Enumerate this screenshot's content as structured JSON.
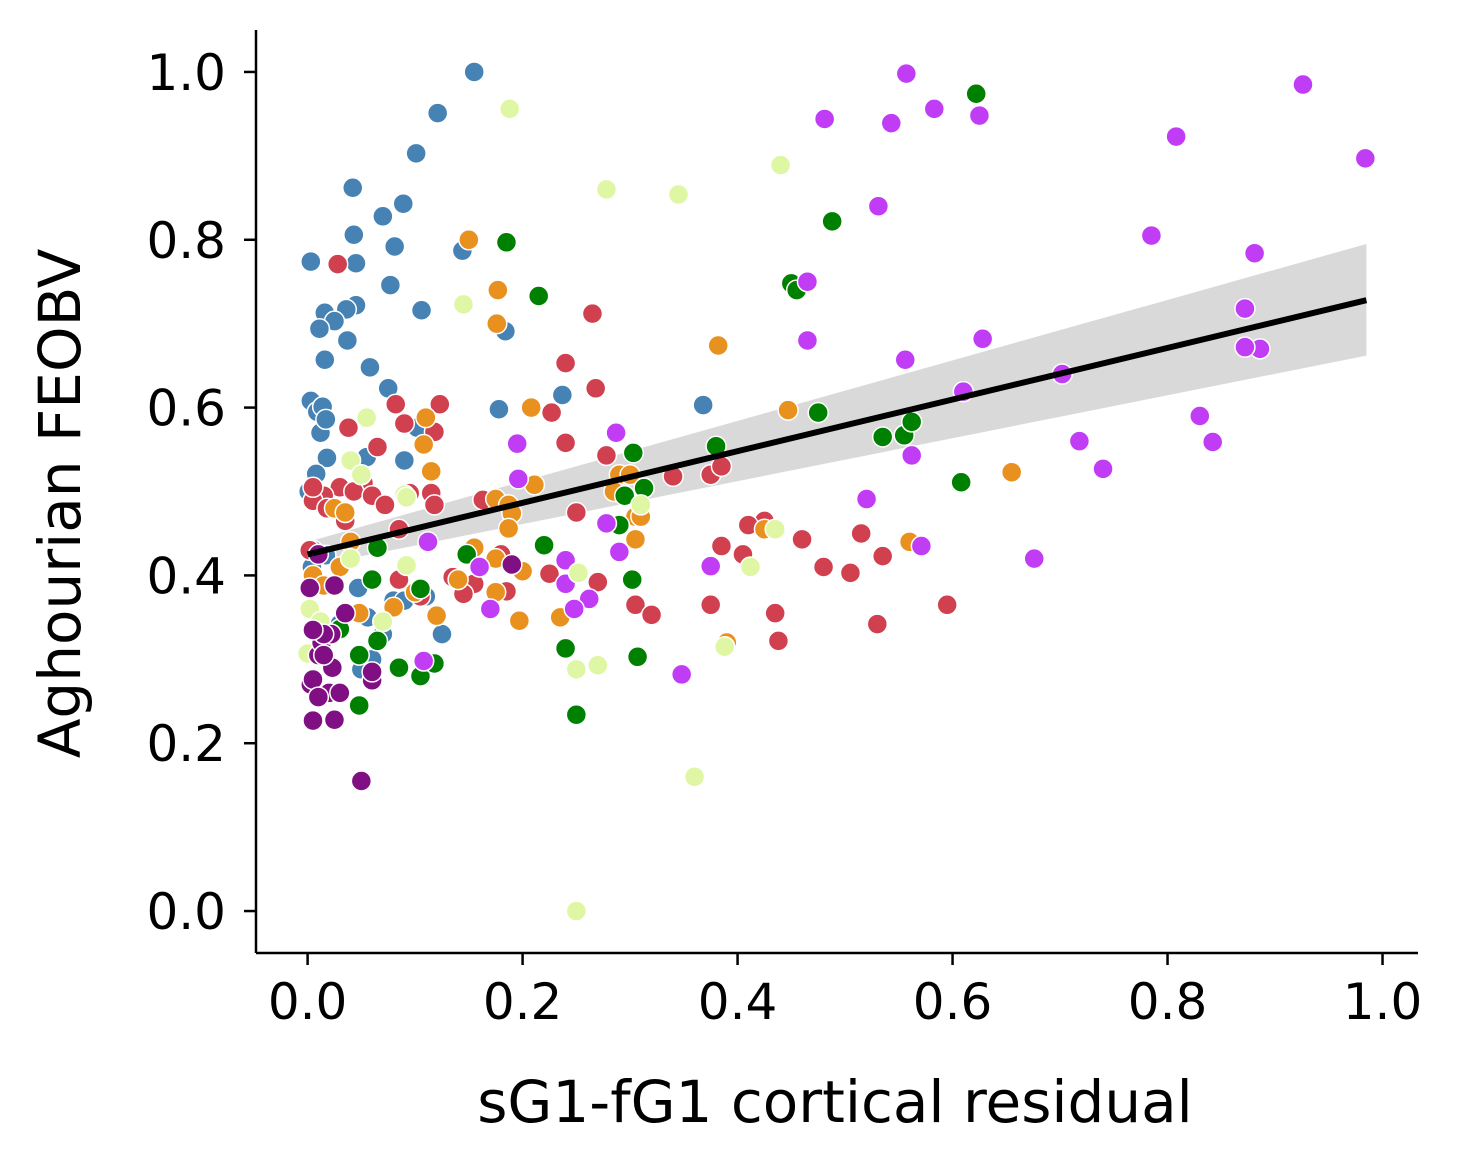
{
  "chart_data": {
    "type": "scatter",
    "xlabel": "sG1-fG1 cortical residual",
    "ylabel": "Aghourian FEOBV",
    "xlim": [
      -0.048,
      1.033
    ],
    "ylim": [
      -0.05,
      1.05
    ],
    "xticks": [
      "0.0",
      "0.2",
      "0.4",
      "0.6",
      "0.8",
      "1.0"
    ],
    "yticks": [
      "0.0",
      "0.2",
      "0.4",
      "0.6",
      "0.8",
      "1.0"
    ],
    "legend": "none",
    "grid": false,
    "regression": {
      "x": [
        0.0,
        0.985
      ],
      "y": [
        0.425,
        0.728
      ],
      "ci_upper": [
        0.44,
        0.795
      ],
      "ci_lower": [
        0.41,
        0.662
      ],
      "color": "#000000",
      "band_color": "#d9d9d9"
    },
    "series": [
      {
        "color": "#4682b4",
        "points": [
          [
            0.155,
            1.0
          ],
          [
            0.121,
            0.951
          ],
          [
            0.101,
            0.903
          ],
          [
            0.042,
            0.862
          ],
          [
            0.089,
            0.843
          ],
          [
            0.07,
            0.828
          ],
          [
            0.043,
            0.806
          ],
          [
            0.081,
            0.792
          ],
          [
            0.144,
            0.787
          ],
          [
            0.003,
            0.774
          ],
          [
            0.045,
            0.772
          ],
          [
            0.077,
            0.746
          ],
          [
            0.045,
            0.722
          ],
          [
            0.016,
            0.713
          ],
          [
            0.036,
            0.717
          ],
          [
            0.106,
            0.716
          ],
          [
            0.025,
            0.703
          ],
          [
            0.011,
            0.694
          ],
          [
            0.184,
            0.691
          ],
          [
            0.037,
            0.68
          ],
          [
            0.016,
            0.657
          ],
          [
            0.058,
            0.648
          ],
          [
            0.075,
            0.623
          ],
          [
            0.237,
            0.615
          ],
          [
            0.368,
            0.603
          ],
          [
            0.178,
            0.598
          ],
          [
            0.003,
            0.608
          ],
          [
            0.009,
            0.595
          ],
          [
            0.014,
            0.601
          ],
          [
            0.012,
            0.57
          ],
          [
            0.017,
            0.586
          ],
          [
            0.055,
            0.541
          ],
          [
            0.09,
            0.537
          ],
          [
            0.102,
            0.576
          ],
          [
            0.018,
            0.54
          ],
          [
            0.008,
            0.521
          ],
          [
            0.001,
            0.5
          ],
          [
            0.005,
            0.43
          ],
          [
            0.017,
            0.424
          ],
          [
            0.047,
            0.385
          ],
          [
            0.11,
            0.375
          ],
          [
            0.056,
            0.35
          ],
          [
            0.08,
            0.37
          ],
          [
            0.125,
            0.33
          ],
          [
            0.07,
            0.33
          ],
          [
            0.06,
            0.3
          ],
          [
            0.05,
            0.288
          ],
          [
            0.03,
            0.342
          ],
          [
            0.004,
            0.41
          ],
          [
            0.09,
            0.37
          ]
        ]
      },
      {
        "color": "#d1404f",
        "points": [
          [
            0.028,
            0.771
          ],
          [
            0.265,
            0.712
          ],
          [
            0.24,
            0.653
          ],
          [
            0.268,
            0.623
          ],
          [
            0.227,
            0.594
          ],
          [
            0.123,
            0.604
          ],
          [
            0.082,
            0.604
          ],
          [
            0.038,
            0.576
          ],
          [
            0.24,
            0.558
          ],
          [
            0.065,
            0.553
          ],
          [
            0.118,
            0.571
          ],
          [
            0.09,
            0.581
          ],
          [
            0.278,
            0.543
          ],
          [
            0.052,
            0.51
          ],
          [
            0.03,
            0.505
          ],
          [
            0.015,
            0.495
          ],
          [
            0.005,
            0.489
          ],
          [
            0.018,
            0.48
          ],
          [
            0.043,
            0.5
          ],
          [
            0.06,
            0.495
          ],
          [
            0.072,
            0.484
          ],
          [
            0.095,
            0.498
          ],
          [
            0.115,
            0.498
          ],
          [
            0.118,
            0.484
          ],
          [
            0.035,
            0.465
          ],
          [
            0.085,
            0.455
          ],
          [
            0.163,
            0.49
          ],
          [
            0.25,
            0.475
          ],
          [
            0.34,
            0.518
          ],
          [
            0.375,
            0.52
          ],
          [
            0.385,
            0.53
          ],
          [
            0.425,
            0.465
          ],
          [
            0.41,
            0.46
          ],
          [
            0.385,
            0.435
          ],
          [
            0.405,
            0.425
          ],
          [
            0.46,
            0.443
          ],
          [
            0.135,
            0.398
          ],
          [
            0.155,
            0.39
          ],
          [
            0.145,
            0.378
          ],
          [
            0.185,
            0.381
          ],
          [
            0.225,
            0.402
          ],
          [
            0.27,
            0.392
          ],
          [
            0.305,
            0.365
          ],
          [
            0.32,
            0.353
          ],
          [
            0.375,
            0.365
          ],
          [
            0.435,
            0.355
          ],
          [
            0.438,
            0.322
          ],
          [
            0.48,
            0.41
          ],
          [
            0.505,
            0.403
          ],
          [
            0.515,
            0.45
          ],
          [
            0.535,
            0.423
          ],
          [
            0.53,
            0.342
          ],
          [
            0.595,
            0.365
          ],
          [
            0.18,
            0.425
          ],
          [
            0.085,
            0.395
          ],
          [
            0.105,
            0.375
          ],
          [
            0.005,
            0.505
          ],
          [
            0.002,
            0.43
          ]
        ]
      },
      {
        "color": "#e8911f",
        "points": [
          [
            0.15,
            0.8
          ],
          [
            0.177,
            0.74
          ],
          [
            0.176,
            0.7
          ],
          [
            0.382,
            0.674
          ],
          [
            0.208,
            0.6
          ],
          [
            0.447,
            0.597
          ],
          [
            0.11,
            0.588
          ],
          [
            0.108,
            0.556
          ],
          [
            0.115,
            0.524
          ],
          [
            0.211,
            0.508
          ],
          [
            0.175,
            0.491
          ],
          [
            0.187,
            0.484
          ],
          [
            0.19,
            0.474
          ],
          [
            0.187,
            0.456
          ],
          [
            0.155,
            0.433
          ],
          [
            0.175,
            0.42
          ],
          [
            0.2,
            0.405
          ],
          [
            0.305,
            0.443
          ],
          [
            0.305,
            0.47
          ],
          [
            0.31,
            0.47
          ],
          [
            0.29,
            0.52
          ],
          [
            0.655,
            0.523
          ],
          [
            0.56,
            0.44
          ],
          [
            0.425,
            0.455
          ],
          [
            0.235,
            0.35
          ],
          [
            0.197,
            0.346
          ],
          [
            0.175,
            0.38
          ],
          [
            0.39,
            0.32
          ],
          [
            0.025,
            0.48
          ],
          [
            0.035,
            0.475
          ],
          [
            0.04,
            0.44
          ],
          [
            0.048,
            0.355
          ],
          [
            0.08,
            0.362
          ],
          [
            0.12,
            0.352
          ],
          [
            0.14,
            0.395
          ],
          [
            0.005,
            0.4
          ],
          [
            0.015,
            0.388
          ],
          [
            0.03,
            0.41
          ],
          [
            0.07,
            0.345
          ],
          [
            0.1,
            0.38
          ],
          [
            0.285,
            0.5
          ],
          [
            0.3,
            0.52
          ]
        ]
      },
      {
        "color": "#008000",
        "points": [
          [
            0.622,
            0.974
          ],
          [
            0.488,
            0.822
          ],
          [
            0.185,
            0.797
          ],
          [
            0.215,
            0.733
          ],
          [
            0.45,
            0.748
          ],
          [
            0.455,
            0.74
          ],
          [
            0.475,
            0.594
          ],
          [
            0.38,
            0.554
          ],
          [
            0.303,
            0.546
          ],
          [
            0.295,
            0.495
          ],
          [
            0.313,
            0.504
          ],
          [
            0.29,
            0.46
          ],
          [
            0.22,
            0.436
          ],
          [
            0.148,
            0.425
          ],
          [
            0.065,
            0.433
          ],
          [
            0.06,
            0.395
          ],
          [
            0.302,
            0.395
          ],
          [
            0.307,
            0.303
          ],
          [
            0.24,
            0.313
          ],
          [
            0.25,
            0.234
          ],
          [
            0.535,
            0.565
          ],
          [
            0.555,
            0.567
          ],
          [
            0.562,
            0.583
          ],
          [
            0.608,
            0.511
          ],
          [
            0.065,
            0.322
          ],
          [
            0.085,
            0.29
          ],
          [
            0.105,
            0.28
          ],
          [
            0.118,
            0.295
          ],
          [
            0.048,
            0.305
          ],
          [
            0.048,
            0.245
          ],
          [
            0.03,
            0.336
          ],
          [
            0.105,
            0.384
          ]
        ]
      },
      {
        "color": "#c13cf5",
        "points": [
          [
            0.557,
            0.998
          ],
          [
            0.926,
            0.985
          ],
          [
            0.583,
            0.956
          ],
          [
            0.625,
            0.948
          ],
          [
            0.481,
            0.944
          ],
          [
            0.543,
            0.939
          ],
          [
            0.808,
            0.923
          ],
          [
            0.984,
            0.897
          ],
          [
            0.531,
            0.84
          ],
          [
            0.785,
            0.805
          ],
          [
            0.465,
            0.75
          ],
          [
            0.881,
            0.784
          ],
          [
            0.465,
            0.68
          ],
          [
            0.628,
            0.682
          ],
          [
            0.556,
            0.657
          ],
          [
            0.61,
            0.619
          ],
          [
            0.702,
            0.64
          ],
          [
            0.872,
            0.718
          ],
          [
            0.886,
            0.67
          ],
          [
            0.872,
            0.672
          ],
          [
            0.83,
            0.59
          ],
          [
            0.842,
            0.559
          ],
          [
            0.718,
            0.56
          ],
          [
            0.74,
            0.527
          ],
          [
            0.562,
            0.543
          ],
          [
            0.52,
            0.491
          ],
          [
            0.571,
            0.435
          ],
          [
            0.676,
            0.42
          ],
          [
            0.195,
            0.557
          ],
          [
            0.287,
            0.57
          ],
          [
            0.196,
            0.515
          ],
          [
            0.29,
            0.428
          ],
          [
            0.278,
            0.462
          ],
          [
            0.24,
            0.418
          ],
          [
            0.24,
            0.39
          ],
          [
            0.262,
            0.372
          ],
          [
            0.248,
            0.36
          ],
          [
            0.375,
            0.411
          ],
          [
            0.348,
            0.282
          ],
          [
            0.112,
            0.44
          ],
          [
            0.108,
            0.298
          ],
          [
            0.17,
            0.36
          ],
          [
            0.16,
            0.41
          ]
        ]
      },
      {
        "color": "#dff7a4",
        "points": [
          [
            0.188,
            0.956
          ],
          [
            0.278,
            0.86
          ],
          [
            0.345,
            0.854
          ],
          [
            0.44,
            0.889
          ],
          [
            0.145,
            0.723
          ],
          [
            0.055,
            0.588
          ],
          [
            0.04,
            0.537
          ],
          [
            0.05,
            0.52
          ],
          [
            0.09,
            0.496
          ],
          [
            0.092,
            0.493
          ],
          [
            0.31,
            0.484
          ],
          [
            0.092,
            0.412
          ],
          [
            0.252,
            0.403
          ],
          [
            0.27,
            0.293
          ],
          [
            0.25,
            0.288
          ],
          [
            0.412,
            0.41
          ],
          [
            0.388,
            0.315
          ],
          [
            0.36,
            0.16
          ],
          [
            0.25,
            0.0
          ],
          [
            0.435,
            0.455
          ],
          [
            0.002,
            0.36
          ],
          [
            0.0,
            0.307
          ],
          [
            0.012,
            0.345
          ],
          [
            0.04,
            0.42
          ],
          [
            0.07,
            0.345
          ]
        ]
      },
      {
        "color": "#800f83",
        "points": [
          [
            0.05,
            0.155
          ],
          [
            0.005,
            0.227
          ],
          [
            0.025,
            0.228
          ],
          [
            0.003,
            0.27
          ],
          [
            0.02,
            0.26
          ],
          [
            0.023,
            0.29
          ],
          [
            0.01,
            0.305
          ],
          [
            0.013,
            0.32
          ],
          [
            0.022,
            0.33
          ],
          [
            0.015,
            0.33
          ],
          [
            0.002,
            0.385
          ],
          [
            0.005,
            0.335
          ],
          [
            0.06,
            0.275
          ],
          [
            0.19,
            0.413
          ],
          [
            0.01,
            0.425
          ],
          [
            0.025,
            0.388
          ],
          [
            0.005,
            0.276
          ],
          [
            0.01,
            0.255
          ],
          [
            0.06,
            0.285
          ],
          [
            0.035,
            0.355
          ],
          [
            0.015,
            0.305
          ],
          [
            0.03,
            0.26
          ]
        ]
      }
    ]
  }
}
